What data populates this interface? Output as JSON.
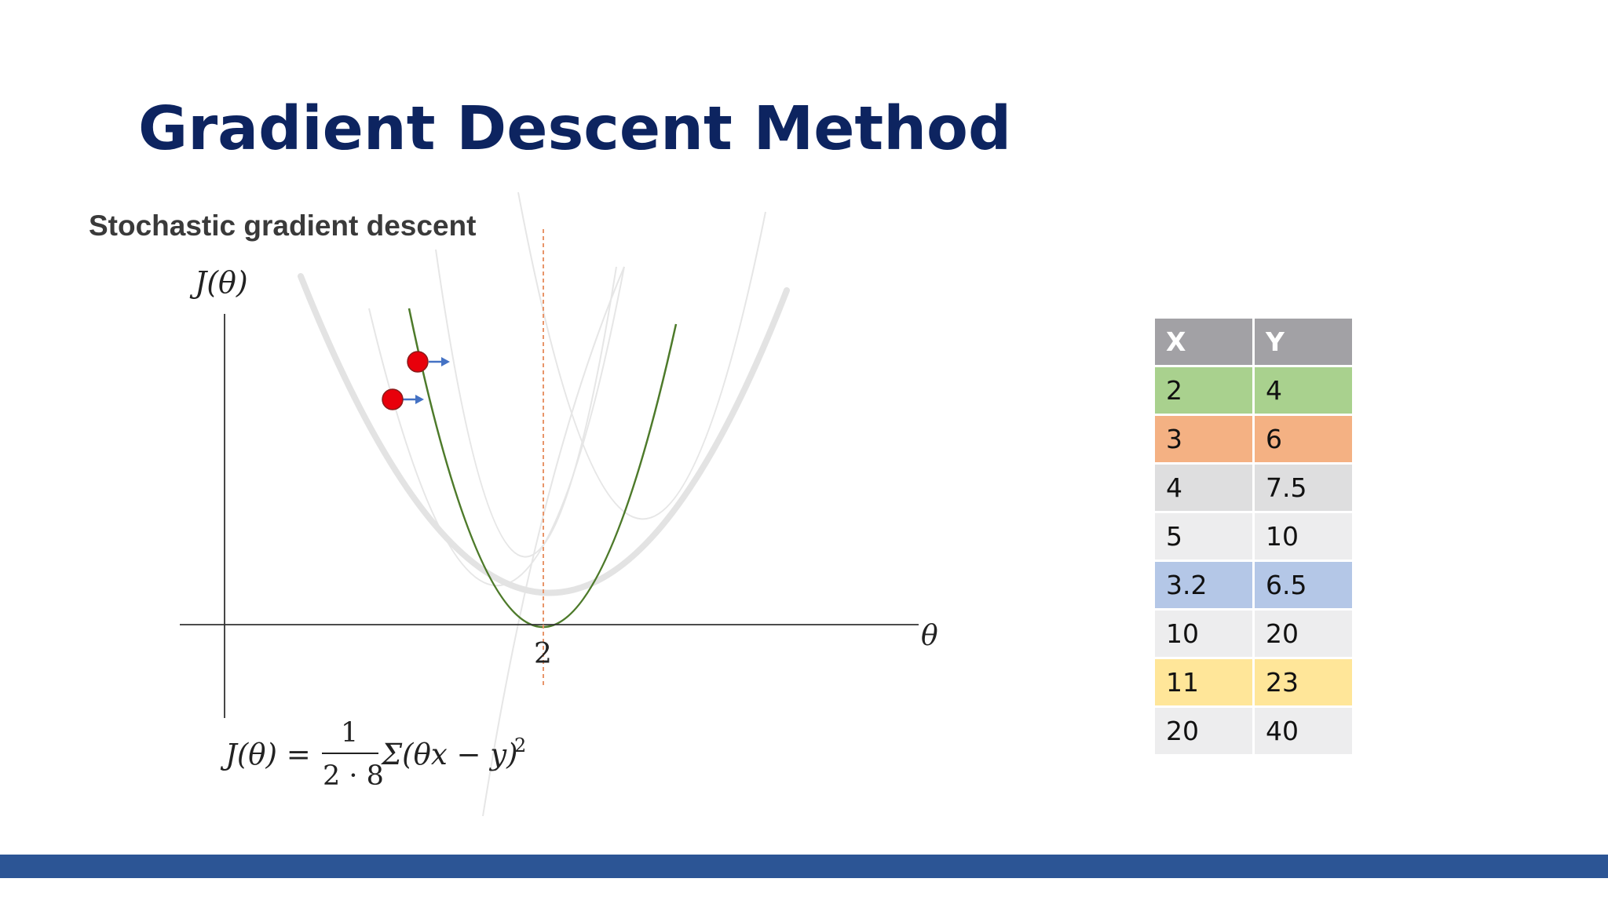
{
  "slide": {
    "title": "Gradient Descent Method",
    "subtitle": "Stochastic gradient descent"
  },
  "diagram": {
    "y_axis_label": "J(θ)",
    "x_axis_label": "θ",
    "minimum_tick_label": "2",
    "formula": {
      "lhs": "J(θ) =",
      "numerator": "1",
      "denominator": "2 · 8",
      "sum_expr": "Σ(θx − y)",
      "exponent": "2"
    },
    "colors": {
      "highlight_curve": "#4d7a2a",
      "average_curve": "#e3e3e3",
      "faint_curves": "#e6e6e6",
      "minimum_line": "#e8956a",
      "points": "#e8000b",
      "arrows": "#4472c4",
      "axes": "#333333"
    },
    "icons": [
      "red-point-icon",
      "blue-arrow-icon"
    ]
  },
  "table": {
    "headers": [
      "X",
      "Y"
    ],
    "rows": [
      {
        "x": "2",
        "y": "4",
        "color": "#a9d18e"
      },
      {
        "x": "3",
        "y": "6",
        "color": "#f4b183"
      },
      {
        "x": "4",
        "y": "7.5",
        "color": "#dededf"
      },
      {
        "x": "5",
        "y": "10",
        "color": "#ededee"
      },
      {
        "x": "3.2",
        "y": "6.5",
        "color": "#b4c7e7"
      },
      {
        "x": "10",
        "y": "20",
        "color": "#ededee"
      },
      {
        "x": "11",
        "y": "23",
        "color": "#ffe699"
      },
      {
        "x": "20",
        "y": "40",
        "color": "#ededee"
      }
    ]
  },
  "footer": {
    "bar_color": "#2c5595"
  }
}
